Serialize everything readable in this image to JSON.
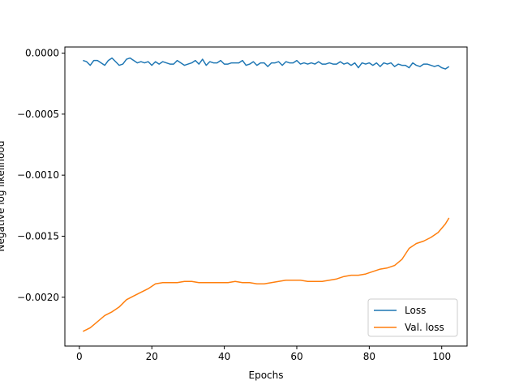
{
  "chart_data": {
    "type": "line",
    "xlabel": "Epochs",
    "ylabel": "Negative log likelihood",
    "xlim": [
      -4,
      107
    ],
    "ylim": [
      -0.0024,
      5e-05
    ],
    "xticks": [
      0,
      20,
      40,
      60,
      80,
      100
    ],
    "xtick_labels": [
      "0",
      "20",
      "40",
      "60",
      "80",
      "100"
    ],
    "yticks": [
      0.0,
      -0.0005,
      -0.001,
      -0.0015,
      -0.002
    ],
    "ytick_labels": [
      "0.0000",
      "−0.0005",
      "−0.0010",
      "−0.0015",
      "−0.0020"
    ],
    "grid": false,
    "legend_position": "lower-right",
    "series": [
      {
        "name": "Loss",
        "color": "#1f77b4",
        "x": [
          1,
          2,
          3,
          4,
          5,
          6,
          7,
          8,
          9,
          10,
          11,
          12,
          13,
          14,
          15,
          16,
          17,
          18,
          19,
          20,
          21,
          22,
          23,
          24,
          25,
          26,
          27,
          28,
          29,
          30,
          31,
          32,
          33,
          34,
          35,
          36,
          37,
          38,
          39,
          40,
          41,
          42,
          43,
          44,
          45,
          46,
          47,
          48,
          49,
          50,
          51,
          52,
          53,
          54,
          55,
          56,
          57,
          58,
          59,
          60,
          61,
          62,
          63,
          64,
          65,
          66,
          67,
          68,
          69,
          70,
          71,
          72,
          73,
          74,
          75,
          76,
          77,
          78,
          79,
          80,
          81,
          82,
          83,
          84,
          85,
          86,
          87,
          88,
          89,
          90,
          91,
          92,
          93,
          94,
          95,
          96,
          97,
          98,
          99,
          100,
          101,
          102
        ],
        "y": [
          -6e-05,
          -7e-05,
          -0.0001,
          -6e-05,
          -6e-05,
          -8e-05,
          -0.0001,
          -6e-05,
          -4e-05,
          -7e-05,
          -0.0001,
          -9e-05,
          -5e-05,
          -4e-05,
          -6e-05,
          -8e-05,
          -7e-05,
          -8e-05,
          -7e-05,
          -0.0001,
          -7e-05,
          -9e-05,
          -7e-05,
          -8e-05,
          -9e-05,
          -9e-05,
          -6e-05,
          -8e-05,
          -0.0001,
          -9e-05,
          -8e-05,
          -6e-05,
          -9e-05,
          -5e-05,
          -0.0001,
          -7e-05,
          -8e-05,
          -8e-05,
          -6e-05,
          -9e-05,
          -9e-05,
          -8e-05,
          -8e-05,
          -8e-05,
          -6e-05,
          -0.0001,
          -9e-05,
          -7e-05,
          -0.0001,
          -8e-05,
          -8e-05,
          -0.00011,
          -8e-05,
          -8e-05,
          -7e-05,
          -0.0001,
          -7e-05,
          -8e-05,
          -8e-05,
          -6e-05,
          -9e-05,
          -8e-05,
          -9e-05,
          -8e-05,
          -9e-05,
          -7e-05,
          -9e-05,
          -9e-05,
          -8e-05,
          -9e-05,
          -9e-05,
          -7e-05,
          -9e-05,
          -8e-05,
          -0.0001,
          -8e-05,
          -0.00012,
          -8e-05,
          -9e-05,
          -8e-05,
          -0.0001,
          -8e-05,
          -0.00011,
          -8e-05,
          -9e-05,
          -8e-05,
          -0.00011,
          -9e-05,
          -0.0001,
          -0.0001,
          -0.00012,
          -8e-05,
          -0.0001,
          -0.00011,
          -9e-05,
          -9e-05,
          -0.0001,
          -0.00011,
          -0.0001,
          -0.00012,
          -0.00013,
          -0.00011
        ]
      },
      {
        "name": "Val. loss",
        "color": "#ff7f0e",
        "x": [
          1,
          3,
          5,
          7,
          9,
          11,
          13,
          15,
          17,
          19,
          21,
          23,
          25,
          27,
          29,
          31,
          33,
          35,
          37,
          39,
          41,
          43,
          45,
          47,
          49,
          51,
          53,
          55,
          57,
          59,
          61,
          63,
          65,
          67,
          69,
          71,
          73,
          75,
          77,
          79,
          81,
          83,
          85,
          87,
          89,
          91,
          93,
          95,
          97,
          99,
          101,
          102
        ],
        "y": [
          -0.00228,
          -0.00225,
          -0.0022,
          -0.00215,
          -0.00212,
          -0.00208,
          -0.00202,
          -0.00199,
          -0.00196,
          -0.00193,
          -0.00189,
          -0.00188,
          -0.00188,
          -0.00188,
          -0.00187,
          -0.00187,
          -0.00188,
          -0.00188,
          -0.00188,
          -0.00188,
          -0.00188,
          -0.00187,
          -0.00188,
          -0.00188,
          -0.00189,
          -0.00189,
          -0.00188,
          -0.00187,
          -0.00186,
          -0.00186,
          -0.00186,
          -0.00187,
          -0.00187,
          -0.00187,
          -0.00186,
          -0.00185,
          -0.00183,
          -0.00182,
          -0.00182,
          -0.00181,
          -0.00179,
          -0.00177,
          -0.00176,
          -0.00174,
          -0.00169,
          -0.0016,
          -0.00156,
          -0.00154,
          -0.00151,
          -0.00147,
          -0.0014,
          -0.00135
        ]
      }
    ]
  }
}
